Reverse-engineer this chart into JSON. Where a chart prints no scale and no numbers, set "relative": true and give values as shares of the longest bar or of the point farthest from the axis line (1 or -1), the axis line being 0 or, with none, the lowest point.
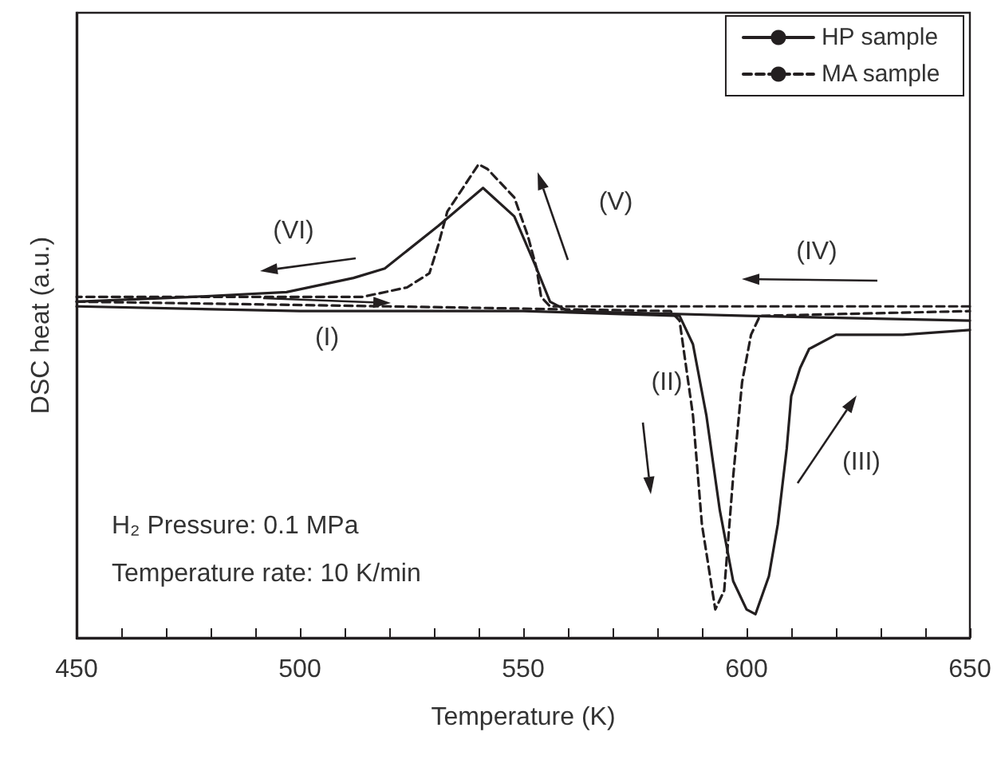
{
  "chart_data": {
    "type": "line",
    "relative": true,
    "xlabel": "Temperature (K)",
    "ylabel": "DSC heat (a.u.)",
    "xlim": [
      450,
      650
    ],
    "xticks": [
      450,
      {
        "value": 460,
        "label": null
      },
      {
        "value": 470,
        "label": null
      },
      {
        "value": 480,
        "label": null
      },
      {
        "value": 490,
        "label": null
      },
      500,
      {
        "value": 510,
        "label": null
      },
      {
        "value": 520,
        "label": null
      },
      {
        "value": 530,
        "label": null
      },
      {
        "value": 540,
        "label": null
      },
      550,
      {
        "value": 560,
        "label": null
      },
      {
        "value": 570,
        "label": null
      },
      {
        "value": 580,
        "label": null
      },
      {
        "value": 590,
        "label": null
      },
      600,
      {
        "value": 610,
        "label": null
      },
      {
        "value": 620,
        "label": null
      },
      {
        "value": 630,
        "label": null
      },
      {
        "value": 640,
        "label": null
      },
      650
    ],
    "tick_labels": "x",
    "grid": false,
    "legend": "top right",
    "marker": "none",
    "series": [
      {
        "name": "HP sample",
        "color": "#231f20",
        "line_style": "solid",
        "x": [
          450,
          500,
          550,
          585,
          588,
          591,
          594,
          597,
          600,
          602,
          605,
          607,
          609,
          610,
          612,
          614,
          620,
          635,
          650
        ],
        "values": [
          0.7,
          0.69,
          0.69,
          0.68,
          0.62,
          0.47,
          0.27,
          0.12,
          0.06,
          0.05,
          0.13,
          0.24,
          0.4,
          0.51,
          0.57,
          0.61,
          0.64,
          0.64,
          0.65
        ]
      },
      {
        "color": "#231f20",
        "line_style": "solid",
        "x": [
          650,
          600,
          560,
          556,
          553,
          548,
          541,
          531,
          519,
          512,
          497,
          476,
          450
        ],
        "values": [
          0.67,
          0.68,
          0.69,
          0.71,
          0.78,
          0.89,
          0.95,
          0.87,
          0.78,
          0.76,
          0.73,
          0.72,
          0.71
        ]
      },
      {
        "name": "MA sample",
        "color": "#231f20",
        "line_style": "dashed",
        "x": [
          450,
          520,
          583,
          585,
          588,
          590,
          593,
          595,
          597,
          599,
          601,
          603,
          650
        ],
        "values": [
          0.71,
          0.7,
          0.69,
          0.67,
          0.47,
          0.24,
          0.06,
          0.1,
          0.34,
          0.54,
          0.64,
          0.68,
          0.69
        ]
      },
      {
        "color": "#231f20",
        "line_style": "dashed",
        "x": [
          650,
          600,
          556,
          554,
          553,
          551,
          548,
          542,
          540,
          533,
          531,
          529,
          524,
          514,
          450
        ],
        "values": [
          0.7,
          0.7,
          0.7,
          0.72,
          0.78,
          0.85,
          0.93,
          0.99,
          1,
          0.9,
          0.83,
          0.77,
          0.74,
          0.72,
          0.72
        ]
      }
    ],
    "annotations": [
      "(I)",
      "(II)",
      "(III)",
      "(IV)",
      "(V)",
      "(VI)",
      "H₂ Pressure: 0.1 MPa",
      "Temperature rate: 10 K/min"
    ]
  }
}
